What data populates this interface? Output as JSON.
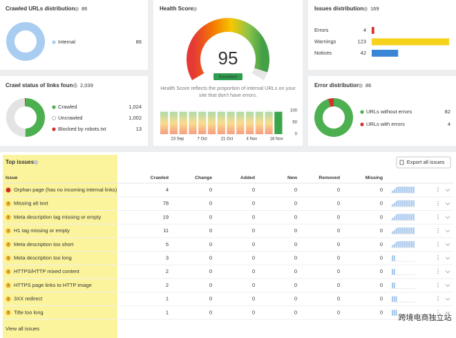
{
  "crawled_urls_distribution": {
    "title": "Crawled URLs distribution",
    "total": 86,
    "legend": [
      {
        "label": "Internal",
        "value": 86,
        "color": "#a9cdf0"
      }
    ]
  },
  "crawl_status": {
    "title": "Crawl status of links found",
    "total": "2,039",
    "legend": [
      {
        "label": "Crawled",
        "value": 1024,
        "value_label": "1,024",
        "color": "#4caf50"
      },
      {
        "label": "Uncrawled",
        "value": 1002,
        "value_label": "1,002",
        "color": "#e3e3e3"
      },
      {
        "label": "Blocked by robots.txt",
        "value": 13,
        "value_label": "13",
        "color": "#d32f2f"
      }
    ]
  },
  "health_score": {
    "title": "Health Score",
    "score": 95,
    "rating": "Excellent",
    "description": "Health Score reflects the proportion of internal URLs on your site that don't have errors.",
    "history": {
      "type": "bar",
      "values": [
        95,
        95,
        95,
        95,
        95,
        95,
        95,
        95,
        95,
        95,
        95,
        95,
        95
      ],
      "ylim": [
        0,
        100
      ],
      "yticks": [
        0,
        50,
        100
      ],
      "x_labels": [
        "23 Sep",
        "7 Oct",
        "21 Oct",
        "4 Nov",
        "18 Nov"
      ]
    }
  },
  "issues_distribution": {
    "title": "Issues distribution",
    "total": 169,
    "items": [
      {
        "label": "Errors",
        "value": 4,
        "color": "#d32f2f"
      },
      {
        "label": "Warnings",
        "value": 123,
        "color": "#f6d21b"
      },
      {
        "label": "Notices",
        "value": 42,
        "color": "#3a86d6"
      }
    ]
  },
  "error_distribution": {
    "title": "Error distribution",
    "total": 86,
    "legend": [
      {
        "label": "URLs without errors",
        "value": 82,
        "color": "#4caf50"
      },
      {
        "label": "URLs with errors",
        "value": 4,
        "color": "#d32f2f"
      }
    ]
  },
  "top_issues": {
    "title": "Top issues",
    "export_button": "Export all issues",
    "columns": [
      "Issue",
      "Crawled",
      "Change",
      "Added",
      "New",
      "Removed",
      "Missing"
    ],
    "rows": [
      {
        "severity": "error",
        "issue": "Orphan page (has no incoming internal links)",
        "crawled": 4,
        "change": 0,
        "added": 0,
        "new": 0,
        "removed": 0,
        "missing": 0
      },
      {
        "severity": "warning",
        "issue": "Missing alt text",
        "crawled": 78,
        "change": 0,
        "added": 0,
        "new": 0,
        "removed": 0,
        "missing": 0
      },
      {
        "severity": "warning",
        "issue": "Meta description tag missing or empty",
        "crawled": 19,
        "change": 0,
        "added": 0,
        "new": 0,
        "removed": 0,
        "missing": 0
      },
      {
        "severity": "warning",
        "issue": "H1 tag missing or empty",
        "crawled": 11,
        "change": 0,
        "added": 0,
        "new": 0,
        "removed": 0,
        "missing": 0
      },
      {
        "severity": "warning",
        "issue": "Meta description too short",
        "crawled": 5,
        "change": 0,
        "added": 0,
        "new": 0,
        "removed": 0,
        "missing": 0
      },
      {
        "severity": "warning",
        "issue": "Meta description too long",
        "crawled": 3,
        "change": 0,
        "added": 0,
        "new": 0,
        "removed": 0,
        "missing": 0
      },
      {
        "severity": "warning",
        "issue": "HTTPS/HTTP mixed content",
        "crawled": 2,
        "change": 0,
        "added": 0,
        "new": 0,
        "removed": 0,
        "missing": 0
      },
      {
        "severity": "warning",
        "issue": "HTTPS page links to HTTP image",
        "crawled": 2,
        "change": 0,
        "added": 0,
        "new": 0,
        "removed": 0,
        "missing": 0
      },
      {
        "severity": "warning",
        "issue": "3XX redirect",
        "crawled": 1,
        "change": 0,
        "added": 0,
        "new": 0,
        "removed": 0,
        "missing": 0
      },
      {
        "severity": "warning",
        "issue": "Title too long",
        "crawled": 1,
        "change": 0,
        "added": 0,
        "new": 0,
        "removed": 0,
        "missing": 0
      }
    ],
    "footer_link": "View all issues"
  },
  "watermark": "跨境电商独立站"
}
